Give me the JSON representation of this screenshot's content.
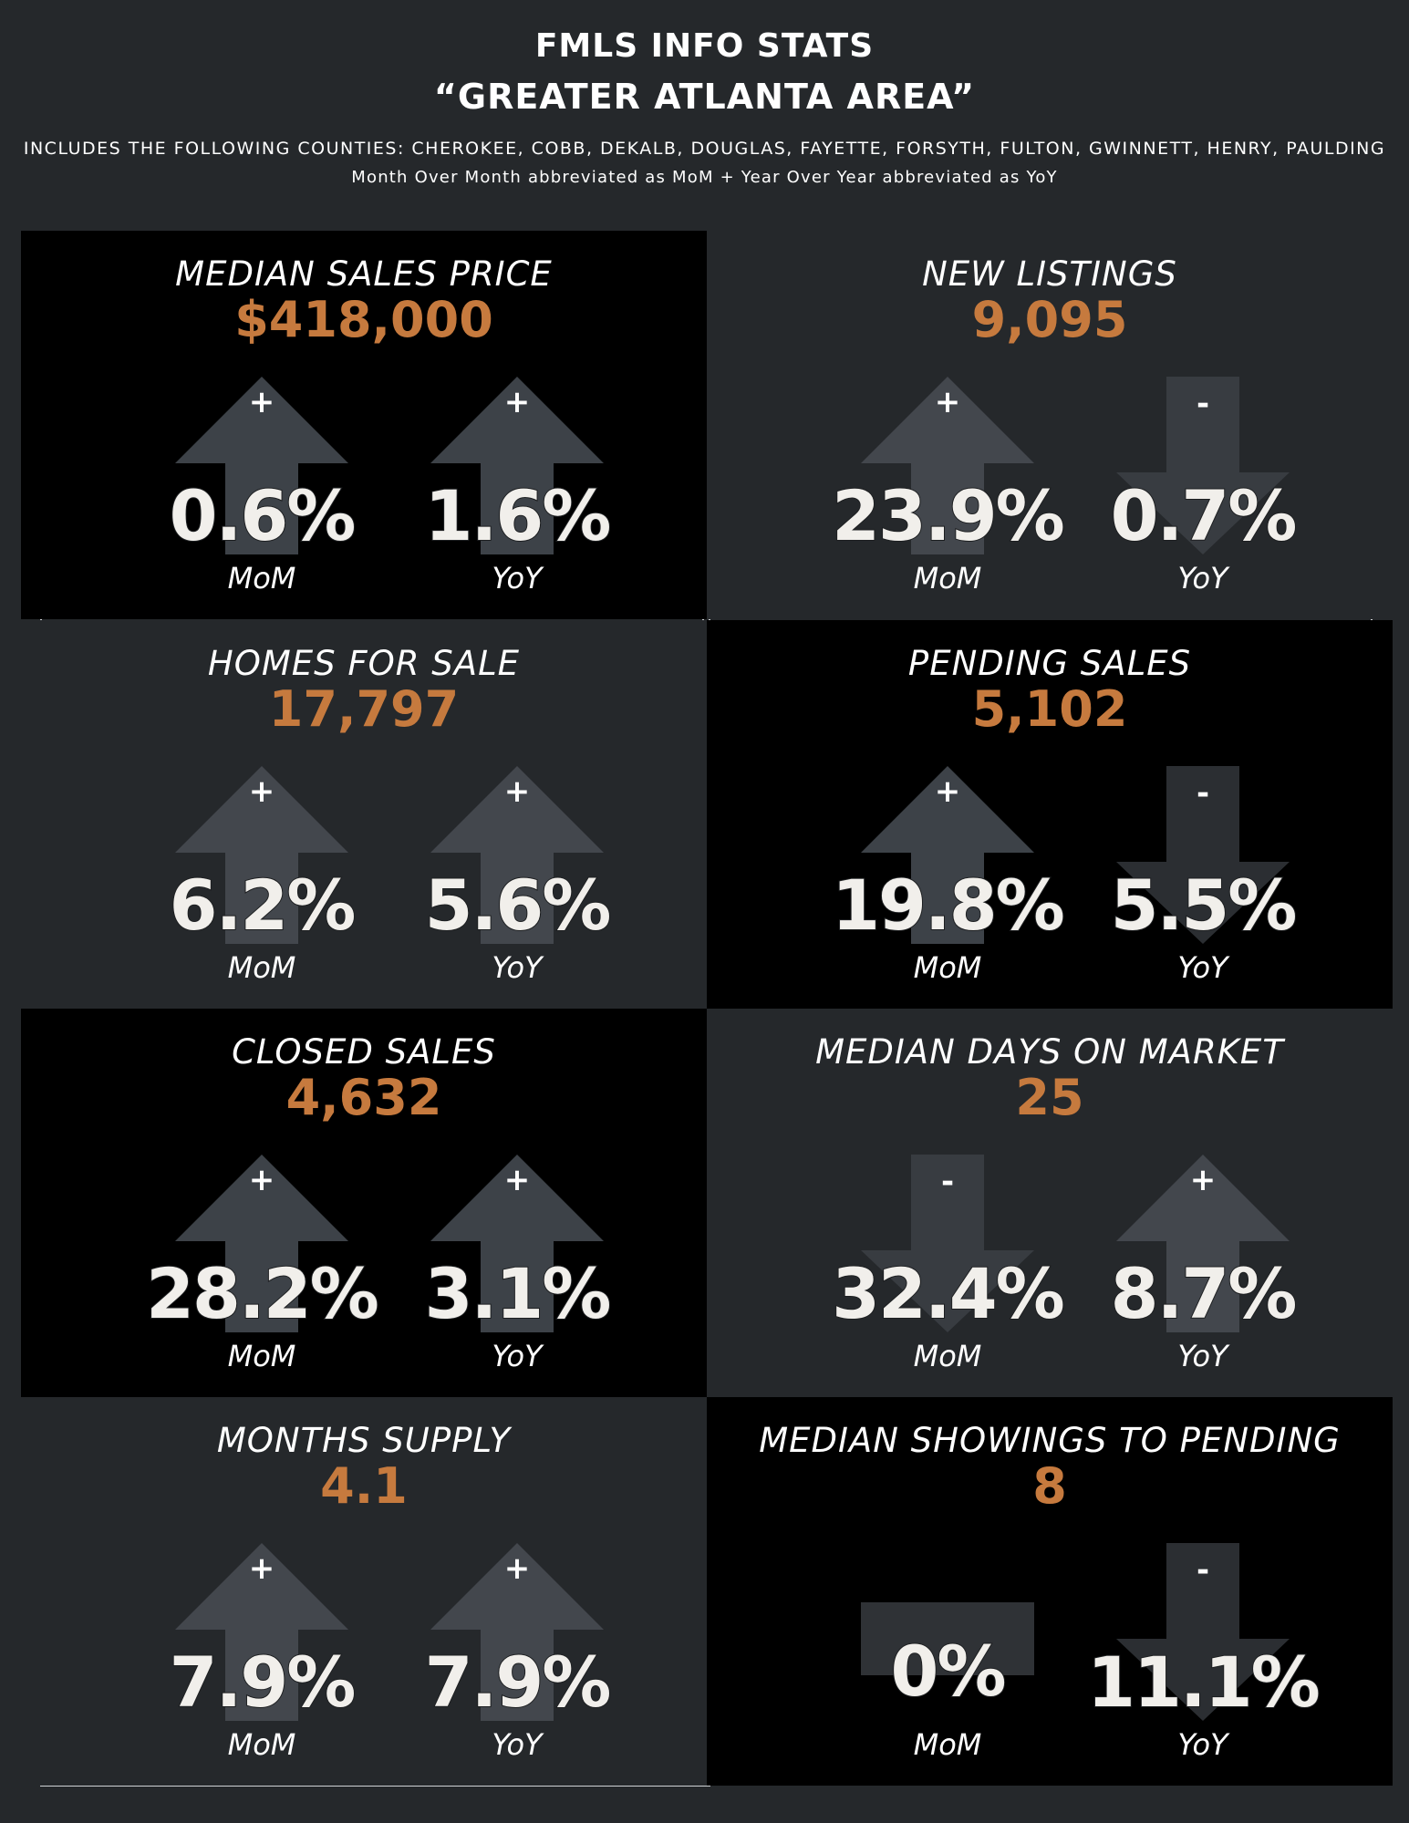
{
  "header": {
    "title": "FMLS INFO STATS",
    "subtitle": "“GREATER ATLANTA AREA”",
    "counties": "INCLUDES THE FOLLOWING COUNTIES: CHEROKEE, COBB, DEKALB, DOUGLAS, FAYETTE, FORSYTH, FULTON, GWINNETT, HENRY, PAULDING",
    "note": "Month Over Month abbreviated as MoM + Year Over Year abbreviated as YoY"
  },
  "colors": {
    "accent": "#c67a3e",
    "background": "#25282b",
    "dark_panel": "#000000"
  },
  "stats": [
    {
      "title": "MEDIAN SALES PRICE",
      "value": "$418,000",
      "mom": {
        "sign": "+",
        "pct": "0.6%",
        "label": "MoM",
        "arrow": "up-arrow"
      },
      "yoy": {
        "sign": "+",
        "pct": "1.6%",
        "label": "YoY",
        "arrow": "up-arrow"
      }
    },
    {
      "title": "NEW LISTINGS",
      "value": "9,095",
      "mom": {
        "sign": "+",
        "pct": "23.9%",
        "label": "MoM",
        "arrow": "up-arrow"
      },
      "yoy": {
        "sign": "-",
        "pct": "0.7%",
        "label": "YoY",
        "arrow": "down-arrow"
      }
    },
    {
      "title": "HOMES FOR SALE",
      "value": "17,797",
      "mom": {
        "sign": "+",
        "pct": "6.2%",
        "label": "MoM",
        "arrow": "up-arrow"
      },
      "yoy": {
        "sign": "+",
        "pct": "5.6%",
        "label": "YoY",
        "arrow": "up-arrow"
      }
    },
    {
      "title": "PENDING SALES",
      "value": "5,102",
      "mom": {
        "sign": "+",
        "pct": "19.8%",
        "label": "MoM",
        "arrow": "up-arrow"
      },
      "yoy": {
        "sign": "-",
        "pct": "5.5%",
        "label": "YoY",
        "arrow": "down-arrow"
      }
    },
    {
      "title": "CLOSED SALES",
      "value": "4,632",
      "mom": {
        "sign": "+",
        "pct": "28.2%",
        "label": "MoM",
        "arrow": "up-arrow"
      },
      "yoy": {
        "sign": "+",
        "pct": "3.1%",
        "label": "YoY",
        "arrow": "up-arrow"
      }
    },
    {
      "title": "MEDIAN DAYS ON MARKET",
      "value": "25",
      "mom": {
        "sign": "-",
        "pct": "32.4%",
        "label": "MoM",
        "arrow": "down-arrow"
      },
      "yoy": {
        "sign": "+",
        "pct": "8.7%",
        "label": "YoY",
        "arrow": "up-arrow"
      }
    },
    {
      "title": "MONTHS SUPPLY",
      "value": "4.1",
      "mom": {
        "sign": "+",
        "pct": "7.9%",
        "label": "MoM",
        "arrow": "up-arrow"
      },
      "yoy": {
        "sign": "+",
        "pct": "7.9%",
        "label": "YoY",
        "arrow": "up-arrow"
      }
    },
    {
      "title": "MEDIAN SHOWINGS TO PENDING",
      "value": "8",
      "mom": {
        "sign": "",
        "pct": "0%",
        "label": "MoM",
        "arrow": "flat-bar"
      },
      "yoy": {
        "sign": "-",
        "pct": "11.1%",
        "label": "YoY",
        "arrow": "down-arrow"
      }
    }
  ]
}
